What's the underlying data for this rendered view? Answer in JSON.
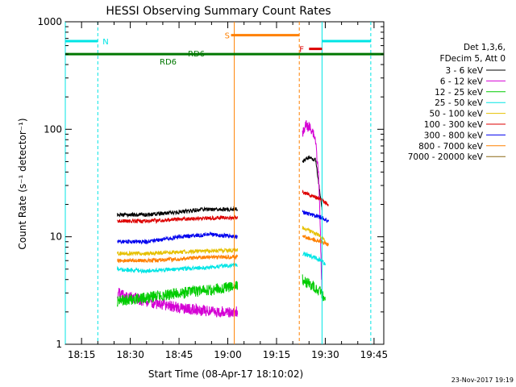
{
  "chart_data": {
    "type": "line",
    "title": "HESSI Observing Summary Count Rates",
    "xlabel": "Start Time (08-Apr-17 18:10:02)",
    "ylabel": "Count Rate (s⁻¹ detector⁻¹)",
    "yscale": "log",
    "xlim": [
      "18:10",
      "19:48"
    ],
    "ylim": [
      1,
      1000
    ],
    "x_ticks": [
      "18:15",
      "18:30",
      "18:45",
      "19:00",
      "19:15",
      "19:30",
      "19:45"
    ],
    "y_ticks": [
      "1",
      "10",
      "100",
      "1000"
    ],
    "grid": false,
    "legend_position": "right",
    "legend_header": [
      "Det 1,3,6,",
      "FDecim 5, Att 0"
    ],
    "series": [
      {
        "name": "3 - 6 keV",
        "color": "#000000",
        "segments": [
          {
            "x": [
              "18:26",
              "18:35",
              "18:45",
              "18:52",
              "19:03"
            ],
            "y": [
              16,
              16,
              17,
              18,
              18
            ]
          },
          {
            "x": [
              "19:23",
              "19:25",
              "19:27",
              "19:29"
            ],
            "y": [
              50,
              55,
              52,
              18
            ]
          }
        ]
      },
      {
        "name": "6 - 12 keV",
        "color": "#d400d4",
        "segments": [
          {
            "x": [
              "18:26",
              "18:35",
              "18:45",
              "18:55",
              "19:03"
            ],
            "y": [
              3,
              2.5,
              2.2,
              2,
              2
            ]
          },
          {
            "x": [
              "19:23",
              "19:24",
              "19:26",
              "19:27",
              "19:28",
              "19:29"
            ],
            "y": [
              90,
              110,
              100,
              80,
              35,
              3
            ]
          }
        ]
      },
      {
        "name": "12 - 25 keV",
        "color": "#00cc00",
        "segments": [
          {
            "x": [
              "18:26",
              "18:35",
              "18:45",
              "18:55",
              "19:03"
            ],
            "y": [
              2.5,
              2.7,
              3,
              3.2,
              3.5
            ]
          },
          {
            "x": [
              "19:23",
              "19:26",
              "19:29",
              "19:30"
            ],
            "y": [
              4,
              3.5,
              3,
              2.5
            ]
          }
        ]
      },
      {
        "name": "25 - 50 keV",
        "color": "#00e5e5",
        "segments": [
          {
            "x": [
              "18:26",
              "18:35",
              "18:45",
              "18:55",
              "19:03"
            ],
            "y": [
              5,
              4.8,
              5,
              5.2,
              5.5
            ]
          },
          {
            "x": [
              "19:23",
              "19:26",
              "19:29",
              "19:30"
            ],
            "y": [
              7,
              6.5,
              6,
              5.5
            ]
          }
        ]
      },
      {
        "name": "50 - 100 keV",
        "color": "#e6c000",
        "segments": [
          {
            "x": [
              "18:26",
              "18:35",
              "18:45",
              "18:55",
              "19:03"
            ],
            "y": [
              7,
              7,
              7.2,
              7.4,
              7.5
            ]
          },
          {
            "x": [
              "19:23",
              "19:26",
              "19:29",
              "19:30"
            ],
            "y": [
              12,
              11,
              10,
              9
            ]
          }
        ]
      },
      {
        "name": "100 - 300 keV",
        "color": "#dd0000",
        "segments": [
          {
            "x": [
              "18:26",
              "18:35",
              "18:45",
              "18:55",
              "19:03"
            ],
            "y": [
              14,
              14,
              14.5,
              15,
              15
            ]
          },
          {
            "x": [
              "19:23",
              "19:26",
              "19:29",
              "19:31"
            ],
            "y": [
              26,
              24,
              22,
              20
            ]
          }
        ]
      },
      {
        "name": "300 - 800 keV",
        "color": "#0000ee",
        "segments": [
          {
            "x": [
              "18:26",
              "18:35",
              "18:45",
              "18:55",
              "19:03"
            ],
            "y": [
              9,
              9,
              10,
              10.5,
              10
            ]
          },
          {
            "x": [
              "19:23",
              "19:26",
              "19:29",
              "19:31"
            ],
            "y": [
              17,
              16,
              15,
              14
            ]
          }
        ]
      },
      {
        "name": "800 - 7000 keV",
        "color": "#ff8000",
        "segments": [
          {
            "x": [
              "18:26",
              "18:35",
              "18:45",
              "18:55",
              "19:03"
            ],
            "y": [
              6,
              6,
              6.2,
              6.5,
              6.5
            ]
          },
          {
            "x": [
              "19:23",
              "19:26",
              "19:29",
              "19:31"
            ],
            "y": [
              10,
              9.5,
              9,
              8.5
            ]
          }
        ]
      },
      {
        "name": "7000 - 20000 keV",
        "color": "#8b6914",
        "segments": []
      }
    ],
    "markers": [
      {
        "label": "N",
        "color": "#00e5e5",
        "y": 660,
        "bars": [
          [
            "18:10",
            "18:20"
          ],
          [
            "19:29",
            "19:44"
          ]
        ],
        "vlines_solid": [
          "18:10",
          "19:29"
        ],
        "vlines_dashed": [
          "18:20",
          "19:44"
        ]
      },
      {
        "label": "S",
        "color": "#ff8000",
        "y": 750,
        "bars": [
          [
            "19:01",
            "19:22"
          ]
        ],
        "vlines_solid": [
          "19:02"
        ],
        "vlines_dashed": [
          "19:22"
        ]
      },
      {
        "label": "F",
        "color": "#dd0000",
        "y": 560,
        "bars": [
          [
            "19:25",
            "19:29"
          ]
        ],
        "vlines_solid": [],
        "vlines_dashed": []
      },
      {
        "label": "RD6",
        "color": "#007700",
        "y": 500,
        "bars": [
          [
            "18:10",
            "19:48"
          ]
        ],
        "vlines_solid": [],
        "vlines_dashed": []
      }
    ],
    "marker_text_labels": [
      "N",
      "S",
      "F",
      "RD6",
      "RD6"
    ],
    "date_stamp": "23-Nov-2017 19:19"
  }
}
